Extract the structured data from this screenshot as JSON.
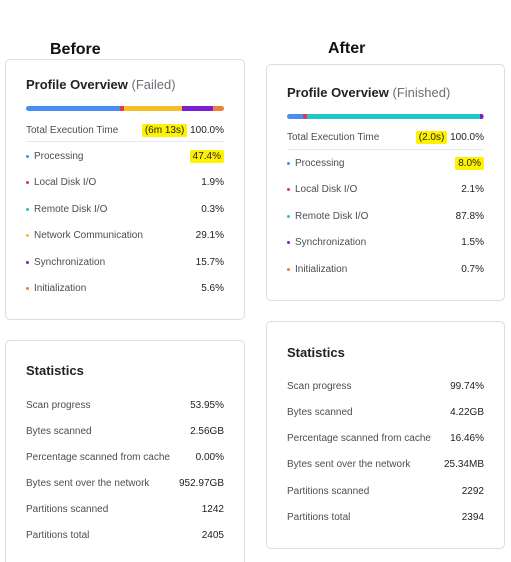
{
  "headings": {
    "before": "Before",
    "after": "After"
  },
  "before": {
    "profile": {
      "title": "Profile Overview",
      "status": "(Failed)",
      "total_label": "Total Execution Time",
      "total_time": "(6m 13s)",
      "total_pct": "100.0%",
      "bar": [
        {
          "name": "Processing",
          "pct": 47.4,
          "color": "#4a8df0"
        },
        {
          "name": "Local Disk I/O",
          "pct": 1.9,
          "color": "#e8344e"
        },
        {
          "name": "Remote Disk I/O",
          "pct": 0.3,
          "color": "#1fc7c7"
        },
        {
          "name": "Network Communication",
          "pct": 29.1,
          "color": "#f5c025"
        },
        {
          "name": "Synchronization",
          "pct": 15.7,
          "color": "#7b1fd6"
        },
        {
          "name": "Initialization",
          "pct": 5.6,
          "color": "#f07d3a"
        }
      ],
      "items": [
        {
          "label": "Processing",
          "value": "47.4%",
          "color": "#4a8df0"
        },
        {
          "label": "Local Disk I/O",
          "value": "1.9%",
          "color": "#e8344e"
        },
        {
          "label": "Remote Disk I/O",
          "value": "0.3%",
          "color": "#1fc7c7"
        },
        {
          "label": "Network Communication",
          "value": "29.1%",
          "color": "#f5c025"
        },
        {
          "label": "Synchronization",
          "value": "15.7%",
          "color": "#7b1fd6"
        },
        {
          "label": "Initialization",
          "value": "5.6%",
          "color": "#f07d3a"
        }
      ]
    },
    "statistics": {
      "title": "Statistics",
      "items": [
        {
          "label": "Scan progress",
          "value": "53.95%"
        },
        {
          "label": "Bytes scanned",
          "value": "2.56GB"
        },
        {
          "label": "Percentage scanned from cache",
          "value": "0.00%"
        },
        {
          "label": "Bytes sent over the network",
          "value": "952.97GB"
        },
        {
          "label": "Partitions scanned",
          "value": "1242"
        },
        {
          "label": "Partitions total",
          "value": "2405"
        }
      ]
    }
  },
  "after": {
    "profile": {
      "title": "Profile Overview",
      "status": "(Finished)",
      "total_label": "Total Execution Time",
      "total_time": "(2.0s)",
      "total_pct": "100.0%",
      "bar": [
        {
          "name": "Processing",
          "pct": 8.0,
          "color": "#4a8df0"
        },
        {
          "name": "Local Disk I/O",
          "pct": 2.1,
          "color": "#e8344e"
        },
        {
          "name": "Remote Disk I/O",
          "pct": 87.8,
          "color": "#1fc7c7"
        },
        {
          "name": "Synchronization",
          "pct": 1.5,
          "color": "#7b1fd6"
        },
        {
          "name": "Initialization",
          "pct": 0.7,
          "color": "#f07d3a"
        }
      ],
      "items": [
        {
          "label": "Processing",
          "value": "8.0%",
          "color": "#4a8df0"
        },
        {
          "label": "Local Disk I/O",
          "value": "2.1%",
          "color": "#e8344e"
        },
        {
          "label": "Remote Disk I/O",
          "value": "87.8%",
          "color": "#1fc7c7"
        },
        {
          "label": "Synchronization",
          "value": "1.5%",
          "color": "#7b1fd6"
        },
        {
          "label": "Initialization",
          "value": "0.7%",
          "color": "#f07d3a"
        }
      ]
    },
    "statistics": {
      "title": "Statistics",
      "items": [
        {
          "label": "Scan progress",
          "value": "99.74%"
        },
        {
          "label": "Bytes scanned",
          "value": "4.22GB"
        },
        {
          "label": "Percentage scanned from cache",
          "value": "16.46%"
        },
        {
          "label": "Bytes sent over the network",
          "value": "25.34MB"
        },
        {
          "label": "Partitions scanned",
          "value": "2292"
        },
        {
          "label": "Partitions total",
          "value": "2394"
        }
      ]
    }
  }
}
